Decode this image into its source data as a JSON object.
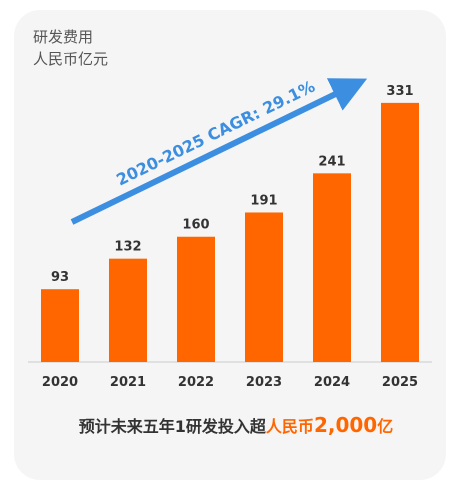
{
  "colors": {
    "bar": "#ff6600",
    "arrow": "#3b8ee0",
    "text": "#333333",
    "card": "#f5f5f5"
  },
  "chart_data": {
    "type": "bar",
    "title": "",
    "ylabel_lines": [
      "研发费用",
      "人民币亿元"
    ],
    "xlabel": "",
    "categories": [
      "2020",
      "2021",
      "2022",
      "2023",
      "2024",
      "2025"
    ],
    "values": [
      93,
      132,
      160,
      191,
      241,
      331
    ],
    "ylim": [
      0,
      350
    ],
    "grid": false,
    "legend": "none",
    "annotation": "2020-2025 CAGR: 29.1%"
  },
  "footer": {
    "prefix": "预计未来五年1研发投入超",
    "highlight": "人民币",
    "amount": "2,000",
    "unit": "亿"
  }
}
